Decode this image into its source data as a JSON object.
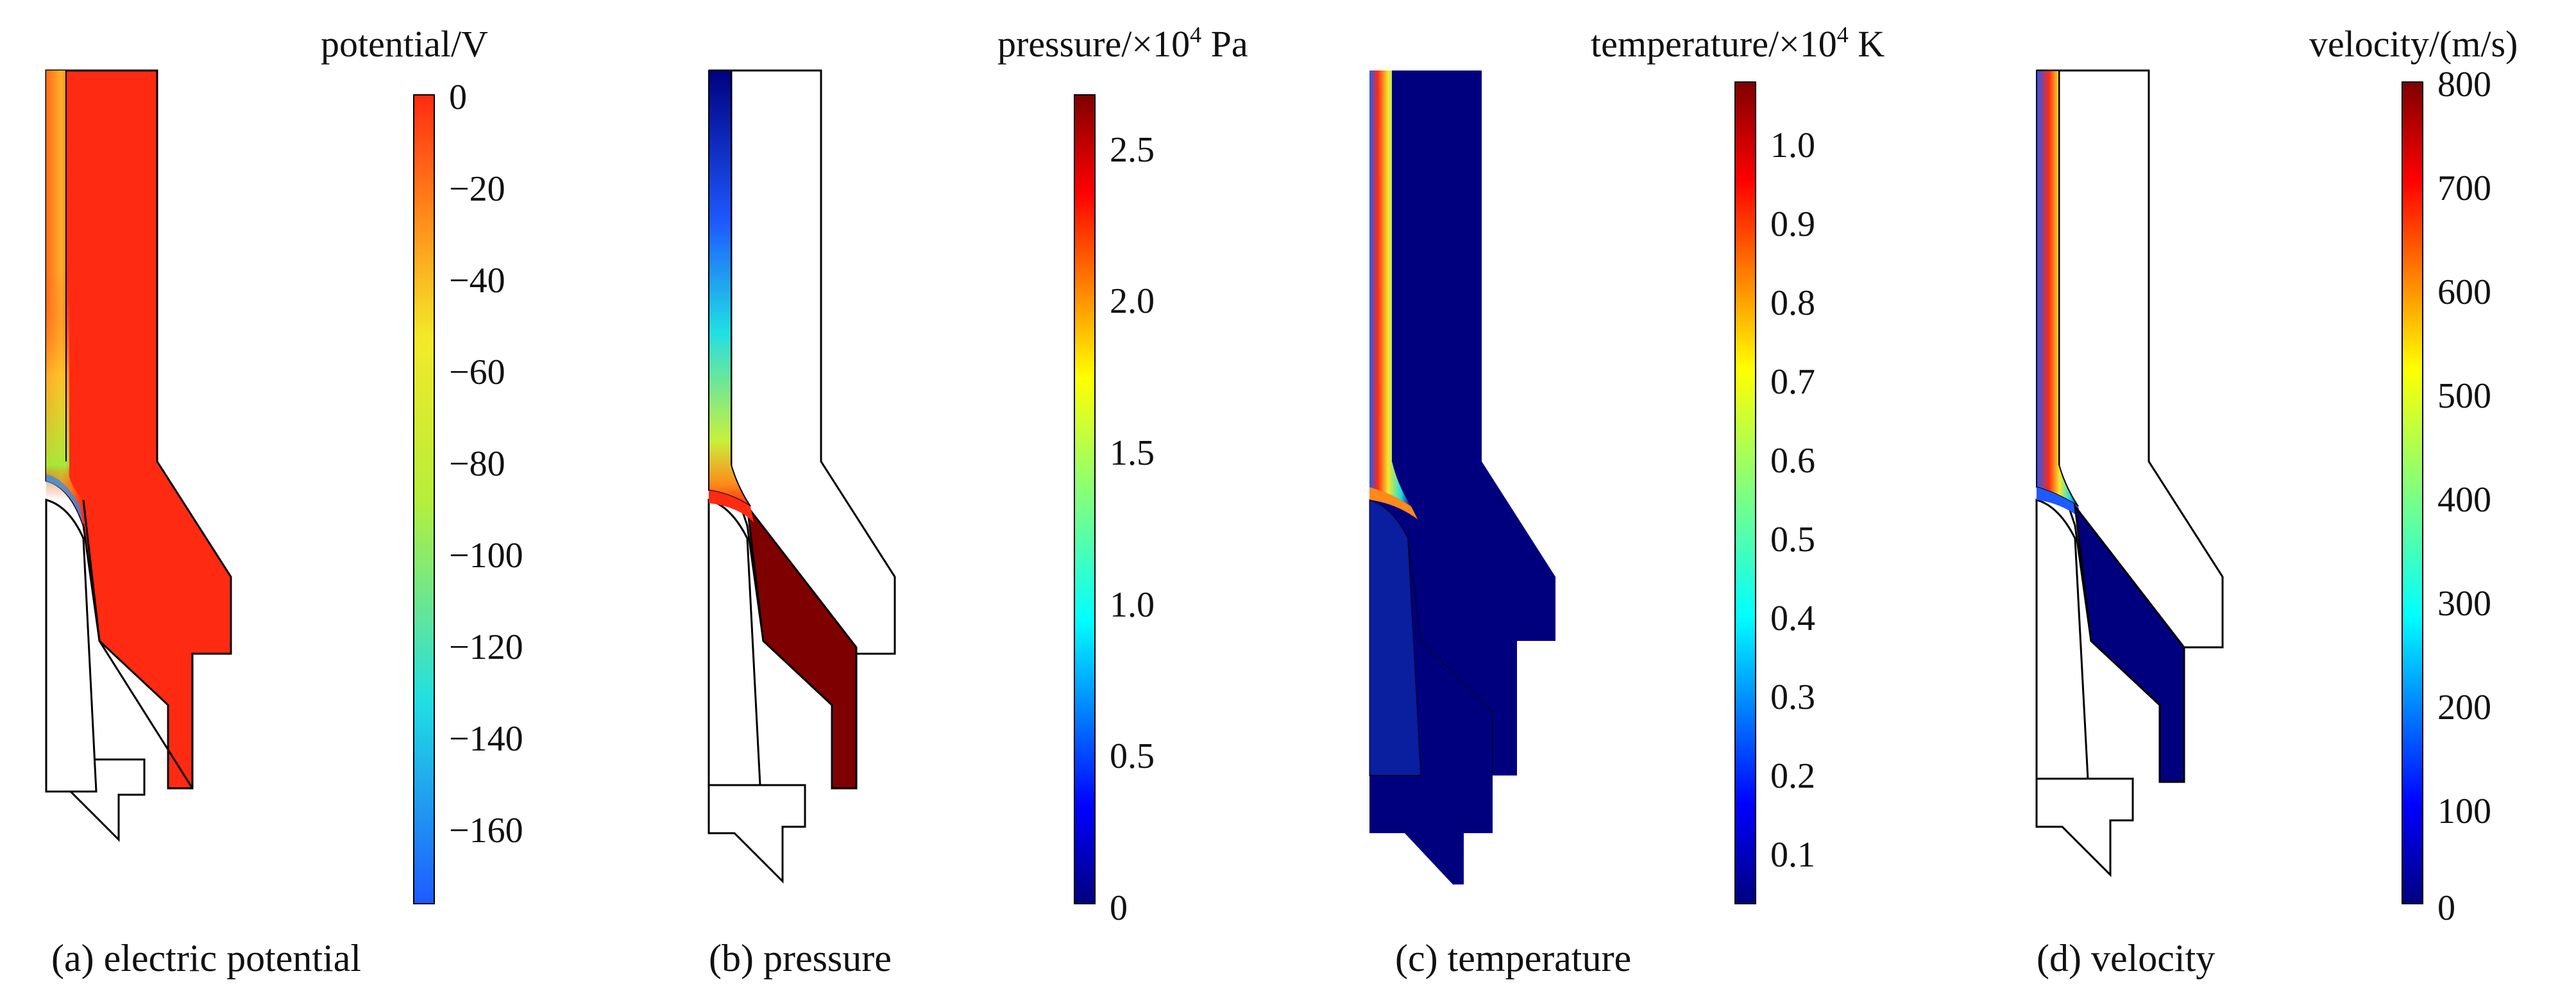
{
  "figure": {
    "panels": [
      {
        "id": "a",
        "caption": "(a) electric potential",
        "colorbar": {
          "title": "potential/V",
          "ticks": [
            "0",
            "−20",
            "−40",
            "−60",
            "−80",
            "−100",
            "−120",
            "−140",
            "−160"
          ]
        }
      },
      {
        "id": "b",
        "caption": "(b) pressure",
        "colorbar": {
          "title_main": "pressure/×10",
          "title_sup": "4",
          "title_unit": " Pa",
          "ticks": [
            "2.5",
            "2.0",
            "1.5",
            "1.0",
            "0.5",
            "0"
          ]
        }
      },
      {
        "id": "c",
        "caption": "(c) temperature",
        "colorbar": {
          "title_main": "temperature/×10",
          "title_sup": "4",
          "title_unit": " K",
          "ticks": [
            "1.0",
            "0.9",
            "0.8",
            "0.7",
            "0.6",
            "0.5",
            "0.4",
            "0.3",
            "0.2",
            "0.1"
          ]
        }
      },
      {
        "id": "d",
        "caption": "(d) velocity",
        "colorbar": {
          "title": "velocity/(m/s)",
          "ticks": [
            "800",
            "700",
            "600",
            "500",
            "400",
            "300",
            "200",
            "100",
            "0"
          ]
        }
      }
    ],
    "colors": {
      "jet_dark_blue": "#00007f",
      "blue": "#0030ff",
      "cyan": "#21dfe3",
      "yellow_green": "#c8f03c",
      "yellow": "#f5e92a",
      "orange": "#ff8a1a",
      "red": "#ff2a12",
      "dark_red": "#7f0000",
      "outline": "#000000"
    }
  }
}
